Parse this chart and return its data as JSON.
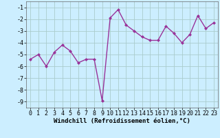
{
  "x": [
    0,
    1,
    2,
    3,
    4,
    5,
    6,
    7,
    8,
    9,
    10,
    11,
    12,
    13,
    14,
    15,
    16,
    17,
    18,
    19,
    20,
    21,
    22,
    23
  ],
  "y": [
    -5.4,
    -5.0,
    -6.0,
    -4.8,
    -4.2,
    -4.7,
    -5.7,
    -5.4,
    -5.4,
    -8.9,
    -1.9,
    -1.2,
    -2.5,
    -3.0,
    -3.5,
    -3.8,
    -3.8,
    -2.6,
    -3.2,
    -4.0,
    -3.3,
    -1.7,
    -2.8,
    -2.3
  ],
  "line_color": "#993399",
  "marker": "D",
  "marker_size": 2.0,
  "line_width": 1.0,
  "bg_color": "#cceeff",
  "grid_color": "#aacccc",
  "xlabel": "Windchill (Refroidissement éolien,°C)",
  "xlabel_fontsize": 6.5,
  "tick_fontsize": 6.0,
  "xlim": [
    -0.5,
    23.5
  ],
  "ylim": [
    -9.5,
    -0.5
  ],
  "yticks": [
    -9,
    -8,
    -7,
    -6,
    -5,
    -4,
    -3,
    -2,
    -1
  ],
  "xticks": [
    0,
    1,
    2,
    3,
    4,
    5,
    6,
    7,
    8,
    9,
    10,
    11,
    12,
    13,
    14,
    15,
    16,
    17,
    18,
    19,
    20,
    21,
    22,
    23
  ]
}
